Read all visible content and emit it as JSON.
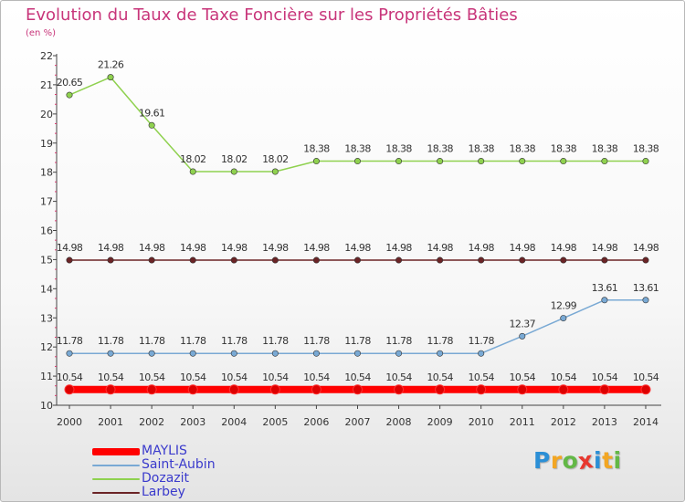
{
  "chart_data": {
    "type": "line",
    "title": "Evolution du Taux de Taxe Foncière sur les Propriétés Bâties",
    "subtitle": "(en %)",
    "xlabel": "",
    "ylabel": "",
    "ylim": [
      10,
      22
    ],
    "grid": false,
    "legend_position": "bottom-left",
    "categories": [
      "2000",
      "2001",
      "2002",
      "2003",
      "2004",
      "2005",
      "2006",
      "2007",
      "2008",
      "2009",
      "2010",
      "2011",
      "2012",
      "2013",
      "2014"
    ],
    "y_ticks": [
      "10",
      "11",
      "12",
      "13",
      "14",
      "15",
      "16",
      "17",
      "18",
      "19",
      "20",
      "21",
      "22"
    ],
    "series": [
      {
        "name": "Dozazit",
        "color": "#8fd14f",
        "values": [
          20.65,
          21.26,
          19.61,
          18.02,
          18.02,
          18.02,
          18.38,
          18.38,
          18.38,
          18.38,
          18.38,
          18.38,
          18.38,
          18.38,
          18.38
        ],
        "labels": [
          "20.65",
          "21.26",
          "19.61",
          "18.02",
          "18.02",
          "18.02",
          "18.38",
          "18.38",
          "18.38",
          "18.38",
          "18.38",
          "18.38",
          "18.38",
          "18.38",
          "18.38"
        ]
      },
      {
        "name": "Larbey",
        "color": "#6b2426",
        "values": [
          14.98,
          14.98,
          14.98,
          14.98,
          14.98,
          14.98,
          14.98,
          14.98,
          14.98,
          14.98,
          14.98,
          14.98,
          14.98,
          14.98,
          14.98
        ],
        "labels": [
          "14.98",
          "14.98",
          "14.98",
          "14.98",
          "14.98",
          "14.98",
          "14.98",
          "14.98",
          "14.98",
          "14.98",
          "14.98",
          "14.98",
          "14.98",
          "14.98",
          "14.98"
        ]
      },
      {
        "name": "Saint-Aubin",
        "color": "#79a9d4",
        "values": [
          11.78,
          11.78,
          11.78,
          11.78,
          11.78,
          11.78,
          11.78,
          11.78,
          11.78,
          11.78,
          11.78,
          12.37,
          12.99,
          13.61,
          13.61
        ],
        "labels": [
          "11.78",
          "11.78",
          "11.78",
          "11.78",
          "11.78",
          "11.78",
          "11.78",
          "11.78",
          "11.78",
          "11.78",
          "11.78",
          "12.37",
          "12.99",
          "13.61",
          "13.61"
        ]
      },
      {
        "name": "MAYLIS",
        "color": "#ff0000",
        "values": [
          10.54,
          10.54,
          10.54,
          10.54,
          10.54,
          10.54,
          10.54,
          10.54,
          10.54,
          10.54,
          10.54,
          10.54,
          10.54,
          10.54,
          10.54
        ],
        "labels": [
          "10.54",
          "10.54",
          "10.54",
          "10.54",
          "10.54",
          "10.54",
          "10.54",
          "10.54",
          "10.54",
          "10.54",
          "10.54",
          "10.54",
          "10.54",
          "10.54",
          "10.54"
        ]
      }
    ],
    "legend": [
      {
        "name": "MAYLIS",
        "color": "#ff0000"
      },
      {
        "name": "Saint-Aubin",
        "color": "#79a9d4"
      },
      {
        "name": "Dozazit",
        "color": "#8fd14f"
      },
      {
        "name": "Larbey",
        "color": "#6b2426"
      }
    ]
  },
  "logo": {
    "letters": [
      {
        "ch": "P",
        "color": "#2b8fd6"
      },
      {
        "ch": "r",
        "color": "#f2a623"
      },
      {
        "ch": "o",
        "color": "#63b846"
      },
      {
        "ch": "x",
        "color": "#e8382f"
      },
      {
        "ch": "i",
        "color": "#2b8fd6"
      },
      {
        "ch": "t",
        "color": "#f2a623"
      },
      {
        "ch": "i",
        "color": "#63b846"
      }
    ]
  }
}
